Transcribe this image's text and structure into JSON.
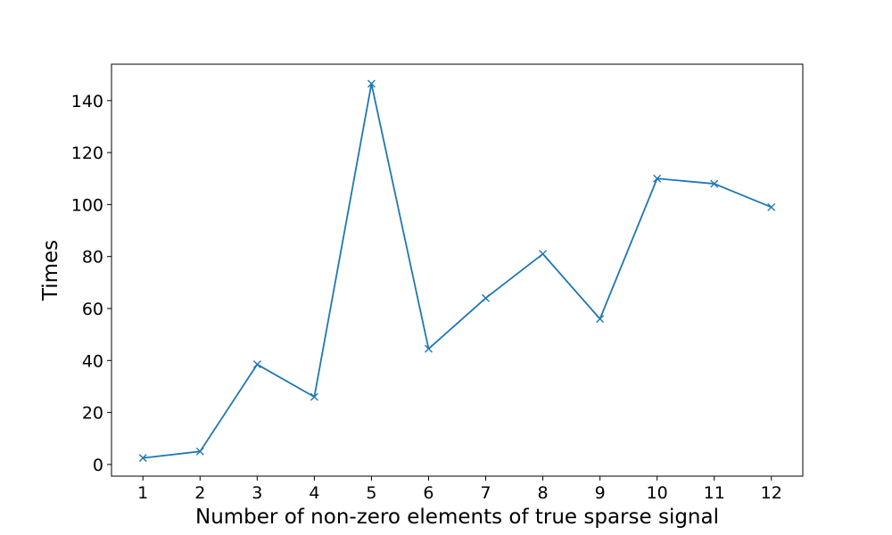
{
  "chart_data": {
    "type": "line",
    "xlabel": "Number of non-zero elements of true sparse signal",
    "ylabel": "Times",
    "x": [
      1,
      2,
      3,
      4,
      5,
      6,
      7,
      8,
      9,
      10,
      11,
      12
    ],
    "series": [
      {
        "values": [
          2.5,
          5,
          38.5,
          26,
          146.5,
          44.5,
          64,
          81,
          56,
          110,
          108,
          99
        ],
        "color": "#1f77b4",
        "marker": "x"
      }
    ],
    "xlim": [
      0.45,
      12.55
    ],
    "ylim": [
      -4.5,
      154
    ],
    "xticks": [
      "1",
      "2",
      "3",
      "4",
      "5",
      "6",
      "7",
      "8",
      "9",
      "10",
      "11",
      "12"
    ],
    "yticks": [
      0,
      20,
      40,
      60,
      80,
      100,
      120,
      140
    ],
    "grid": false,
    "legend": false
  }
}
